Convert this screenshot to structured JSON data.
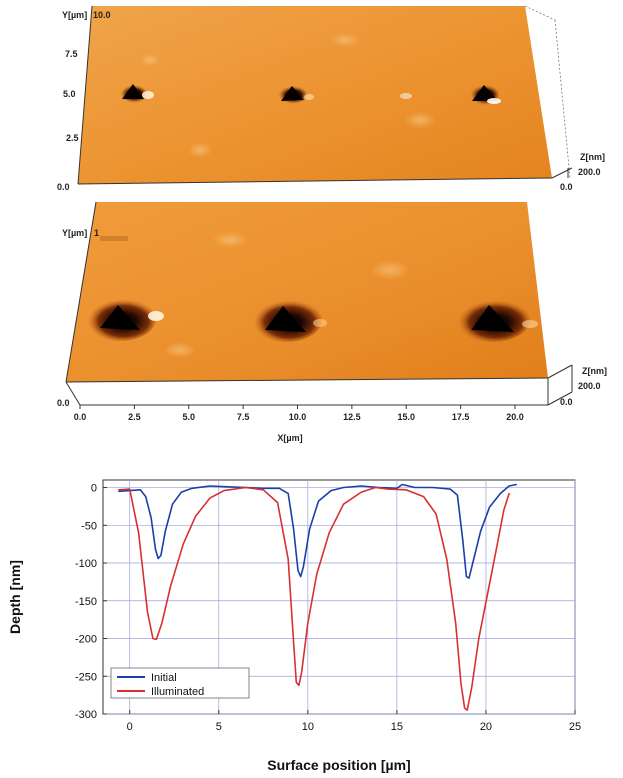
{
  "afm_panels": [
    {
      "y_axis_label": "Y[µm]",
      "y_ticks": [
        "10.0",
        "7.5",
        "5.0",
        "2.5",
        "0.0"
      ],
      "z_axis_label": "Z[nm]",
      "z_ticks": [
        "200.0",
        "0.0"
      ]
    },
    {
      "y_axis_label": "Y[µm]",
      "y_top_tick": "1",
      "y_bottom_tick": "0.0",
      "z_axis_label": "Z[nm]",
      "z_ticks": [
        "200.0",
        "0.0"
      ],
      "x_ticks": [
        "0.0",
        "2.5",
        "5.0",
        "7.5",
        "10.0",
        "12.5",
        "15.0",
        "17.5",
        "20.0"
      ],
      "x_axis_label": "X[µm]"
    }
  ],
  "chart_data": {
    "type": "line",
    "title": "",
    "xlabel": "Surface position [µm]",
    "ylabel": "Depth [nm]",
    "xlim": [
      -1.5,
      25
    ],
    "ylim": [
      -300,
      10
    ],
    "x_ticks": [
      0,
      5,
      10,
      15,
      20,
      25
    ],
    "y_ticks": [
      0,
      -50,
      -100,
      -150,
      -200,
      -250,
      -300
    ],
    "grid": true,
    "legend_position": "bottom-left",
    "series": [
      {
        "name": "Initial",
        "color": "#1a3fa8",
        "points": [
          [
            -0.6,
            -5
          ],
          [
            0,
            -4
          ],
          [
            0.6,
            -3
          ],
          [
            0.9,
            -12
          ],
          [
            1.2,
            -40
          ],
          [
            1.45,
            -82
          ],
          [
            1.6,
            -94
          ],
          [
            1.75,
            -90
          ],
          [
            2.0,
            -58
          ],
          [
            2.4,
            -22
          ],
          [
            2.9,
            -6
          ],
          [
            3.5,
            -1
          ],
          [
            4.5,
            2
          ],
          [
            5.5,
            1
          ],
          [
            6.5,
            0
          ],
          [
            7.5,
            -1
          ],
          [
            8.4,
            -1
          ],
          [
            8.9,
            -8
          ],
          [
            9.2,
            -55
          ],
          [
            9.45,
            -110
          ],
          [
            9.6,
            -118
          ],
          [
            9.75,
            -105
          ],
          [
            10.1,
            -55
          ],
          [
            10.6,
            -18
          ],
          [
            11.3,
            -4
          ],
          [
            12,
            0
          ],
          [
            13,
            2
          ],
          [
            14,
            0
          ],
          [
            15,
            -1
          ],
          [
            15.3,
            4
          ],
          [
            16,
            0
          ],
          [
            17,
            0
          ],
          [
            18,
            -2
          ],
          [
            18.4,
            -10
          ],
          [
            18.7,
            -70
          ],
          [
            18.9,
            -118
          ],
          [
            19.05,
            -120
          ],
          [
            19.3,
            -96
          ],
          [
            19.7,
            -58
          ],
          [
            20.2,
            -26
          ],
          [
            20.8,
            -8
          ],
          [
            21.3,
            2
          ],
          [
            21.7,
            4
          ]
        ]
      },
      {
        "name": "Illuminated",
        "color": "#d83030",
        "points": [
          [
            -0.6,
            -3
          ],
          [
            0,
            -2
          ],
          [
            0.5,
            -60
          ],
          [
            1.0,
            -165
          ],
          [
            1.3,
            -200
          ],
          [
            1.5,
            -201
          ],
          [
            1.8,
            -180
          ],
          [
            2.3,
            -130
          ],
          [
            3.0,
            -75
          ],
          [
            3.7,
            -38
          ],
          [
            4.5,
            -14
          ],
          [
            5.3,
            -4
          ],
          [
            6.5,
            0
          ],
          [
            7.5,
            -3
          ],
          [
            8.3,
            -20
          ],
          [
            8.9,
            -95
          ],
          [
            9.2,
            -205
          ],
          [
            9.35,
            -258
          ],
          [
            9.5,
            -262
          ],
          [
            9.65,
            -245
          ],
          [
            10.0,
            -180
          ],
          [
            10.5,
            -115
          ],
          [
            11.2,
            -60
          ],
          [
            12.0,
            -22
          ],
          [
            13,
            -6
          ],
          [
            13.8,
            0
          ],
          [
            14.5,
            -2
          ],
          [
            15.5,
            -3
          ],
          [
            16.5,
            -12
          ],
          [
            17.2,
            -35
          ],
          [
            17.8,
            -95
          ],
          [
            18.3,
            -180
          ],
          [
            18.6,
            -260
          ],
          [
            18.8,
            -292
          ],
          [
            18.95,
            -295
          ],
          [
            19.2,
            -265
          ],
          [
            19.6,
            -200
          ],
          [
            20.1,
            -140
          ],
          [
            20.6,
            -80
          ],
          [
            21.0,
            -30
          ],
          [
            21.3,
            -8
          ]
        ]
      }
    ]
  }
}
